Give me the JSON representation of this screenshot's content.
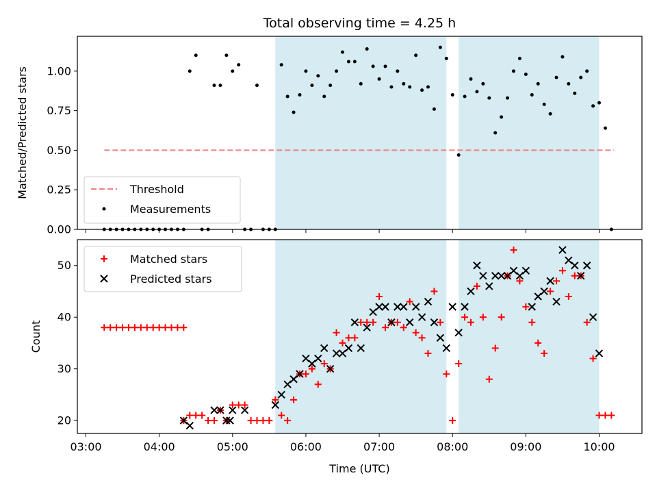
{
  "chart_data": [
    {
      "type": "scatter",
      "title": "Total observing time = 4.25 h",
      "xlabel": "",
      "ylabel": "Matched/Predicted stars",
      "xlim": [
        "03:00",
        "10:20"
      ],
      "ylim": [
        0,
        1.2
      ],
      "yticks": [
        "0.00",
        "0.25",
        "0.50",
        "0.75",
        "1.00"
      ],
      "shaded_intervals": [
        [
          "05:35",
          "07:55"
        ],
        [
          "08:05",
          "10:00"
        ]
      ],
      "threshold": {
        "name": "Threshold",
        "value": 0.5,
        "x_range": [
          "03:15",
          "10:12"
        ],
        "color": "#f08080"
      },
      "legend": {
        "position": "lower-left",
        "entries": [
          "Threshold",
          "Measurements"
        ]
      },
      "series": [
        {
          "name": "Measurements",
          "color": "#000000",
          "x": [
            "03:15",
            "03:20",
            "03:25",
            "03:30",
            "03:35",
            "03:40",
            "03:45",
            "03:50",
            "03:55",
            "04:00",
            "04:05",
            "04:10",
            "04:15",
            "04:20",
            "04:25",
            "04:30",
            "04:35",
            "04:40",
            "04:45",
            "04:50",
            "04:55",
            "05:00",
            "05:05",
            "05:10",
            "05:15",
            "05:20",
            "05:25",
            "05:30",
            "05:35",
            "05:40",
            "05:45",
            "05:50",
            "05:55",
            "06:00",
            "06:05",
            "06:10",
            "06:15",
            "06:20",
            "06:25",
            "06:30",
            "06:35",
            "06:40",
            "06:45",
            "06:50",
            "06:55",
            "07:00",
            "07:05",
            "07:10",
            "07:15",
            "07:20",
            "07:25",
            "07:30",
            "07:35",
            "07:40",
            "07:45",
            "07:50",
            "07:55",
            "08:00",
            "08:05",
            "08:10",
            "08:15",
            "08:20",
            "08:25",
            "08:30",
            "08:35",
            "08:40",
            "08:45",
            "08:50",
            "08:55",
            "09:00",
            "09:05",
            "09:10",
            "09:15",
            "09:20",
            "09:25",
            "09:30",
            "09:35",
            "09:40",
            "09:45",
            "09:50",
            "09:55",
            "10:00",
            "10:05",
            "10:10"
          ],
          "values": [
            0,
            0,
            0,
            0,
            0,
            0,
            0,
            0,
            0,
            0,
            0,
            0,
            0,
            0,
            1.0,
            1.1,
            0,
            0,
            0.91,
            0.91,
            1.1,
            1.0,
            1.04,
            0,
            0,
            0.91,
            0,
            0,
            0,
            1.04,
            0.84,
            0.74,
            0.85,
            1.0,
            0.91,
            0.97,
            0.84,
            0.91,
            1.0,
            1.12,
            1.06,
            1.06,
            0.92,
            1.14,
            1.03,
            0.95,
            1.03,
            0.9,
            1.0,
            0.92,
            0.9,
            1.1,
            0.88,
            0.9,
            0.76,
            1.15,
            1.08,
            0.85,
            0.47,
            0.84,
            0.95,
            0.87,
            0.92,
            0.83,
            0.61,
            0.71,
            0.83,
            1.0,
            1.08,
            0.98,
            0.85,
            0.92,
            0.79,
            0.73,
            0.96,
            1.09,
            0.92,
            0.86,
            0.96,
            1.0,
            0.78,
            0.8,
            0.64,
            0
          ]
        }
      ]
    },
    {
      "type": "scatter",
      "title": "",
      "xlabel": "Time (UTC)",
      "ylabel": "Count",
      "xlim": [
        "03:00",
        "10:20"
      ],
      "ylim": [
        17.5,
        55
      ],
      "xticks": [
        "03:00",
        "04:00",
        "05:00",
        "06:00",
        "07:00",
        "08:00",
        "09:00",
        "10:00"
      ],
      "yticks": [
        "20",
        "30",
        "40",
        "50"
      ],
      "shaded_intervals": [
        [
          "05:35",
          "07:55"
        ],
        [
          "08:05",
          "10:00"
        ]
      ],
      "legend": {
        "position": "top-left",
        "entries": [
          "Matched stars",
          "Predicted stars"
        ]
      },
      "series": [
        {
          "name": "Matched stars",
          "marker": "plus",
          "color": "#ff0000",
          "x": [
            "03:15",
            "03:20",
            "03:25",
            "03:30",
            "03:35",
            "03:40",
            "03:45",
            "03:50",
            "03:55",
            "04:00",
            "04:05",
            "04:10",
            "04:15",
            "04:20",
            "04:20",
            "04:25",
            "04:30",
            "04:35",
            "04:40",
            "04:45",
            "04:50",
            "04:55",
            "05:00",
            "05:05",
            "05:10",
            "05:15",
            "05:20",
            "05:25",
            "05:30",
            "05:35",
            "05:40",
            "05:45",
            "05:50",
            "05:55",
            "06:00",
            "06:05",
            "06:10",
            "06:15",
            "06:20",
            "06:25",
            "06:30",
            "06:35",
            "06:40",
            "06:45",
            "06:50",
            "06:55",
            "07:00",
            "07:05",
            "07:10",
            "07:15",
            "07:20",
            "07:25",
            "07:30",
            "07:35",
            "07:40",
            "07:45",
            "07:50",
            "07:55",
            "08:00",
            "08:05",
            "08:10",
            "08:15",
            "08:20",
            "08:25",
            "08:30",
            "08:35",
            "08:40",
            "08:45",
            "08:50",
            "08:55",
            "09:00",
            "09:05",
            "09:10",
            "09:15",
            "09:20",
            "09:25",
            "09:30",
            "09:35",
            "09:40",
            "09:45",
            "09:50",
            "09:55",
            "10:00",
            "10:05",
            "10:10"
          ],
          "values": [
            38,
            38,
            38,
            38,
            38,
            38,
            38,
            38,
            38,
            38,
            38,
            38,
            38,
            38,
            20,
            21,
            21,
            21,
            20,
            20,
            22,
            20,
            23,
            23,
            23,
            20,
            20,
            20,
            20,
            24,
            21,
            20,
            24,
            29,
            29,
            30,
            27,
            31,
            30,
            37,
            35,
            36,
            36,
            39,
            39,
            39,
            44,
            38,
            39,
            39,
            38,
            43,
            37,
            36,
            33,
            45,
            39,
            29,
            20,
            31,
            40,
            39,
            46,
            40,
            28,
            34,
            40,
            48,
            53,
            47,
            42,
            39,
            35,
            33,
            45,
            47,
            49,
            44,
            48,
            48,
            39,
            32,
            21,
            21,
            21
          ]
        },
        {
          "name": "Predicted stars",
          "marker": "x",
          "color": "#000000",
          "x": [
            "04:20",
            "04:25",
            "04:45",
            "04:50",
            "04:55",
            "04:58",
            "05:00",
            "05:10",
            "05:35",
            "05:40",
            "05:45",
            "05:50",
            "05:55",
            "06:00",
            "06:05",
            "06:10",
            "06:15",
            "06:20",
            "06:25",
            "06:30",
            "06:35",
            "06:40",
            "06:45",
            "06:50",
            "06:55",
            "07:00",
            "07:05",
            "07:10",
            "07:15",
            "07:20",
            "07:25",
            "07:30",
            "07:35",
            "07:40",
            "07:45",
            "07:50",
            "07:55",
            "08:00",
            "08:05",
            "08:10",
            "08:15",
            "08:20",
            "08:25",
            "08:30",
            "08:35",
            "08:40",
            "08:45",
            "08:50",
            "08:55",
            "09:00",
            "09:05",
            "09:10",
            "09:15",
            "09:20",
            "09:25",
            "09:30",
            "09:35",
            "09:40",
            "09:45",
            "09:50",
            "09:55",
            "10:00"
          ],
          "values": [
            20,
            19,
            22,
            22,
            20,
            20,
            22,
            22,
            23,
            25,
            27,
            28,
            29,
            32,
            31,
            32,
            34,
            30,
            33,
            33,
            34,
            39,
            34,
            38,
            41,
            42,
            42,
            39,
            42,
            42,
            39,
            42,
            40,
            43,
            39,
            36,
            34,
            42,
            37,
            42,
            45,
            50,
            48,
            46,
            48,
            48,
            48,
            49,
            48,
            49,
            42,
            44,
            45,
            47,
            43,
            53,
            51,
            50,
            48,
            50,
            40,
            33
          ]
        }
      ]
    }
  ]
}
